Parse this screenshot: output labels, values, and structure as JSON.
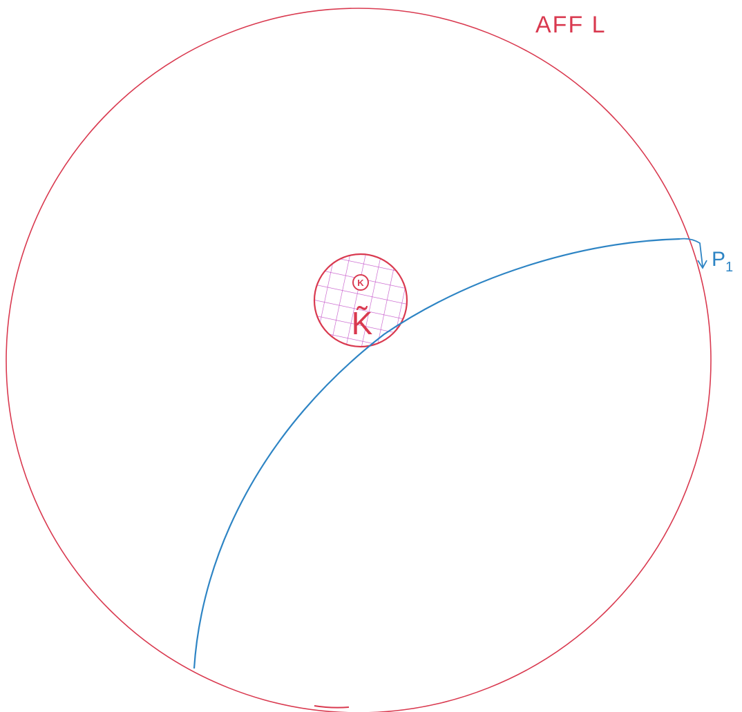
{
  "labels": {
    "title": "AFF L",
    "inner_small": "K",
    "inner": "K̃",
    "path_label": "P",
    "path_sub": "1"
  }
}
